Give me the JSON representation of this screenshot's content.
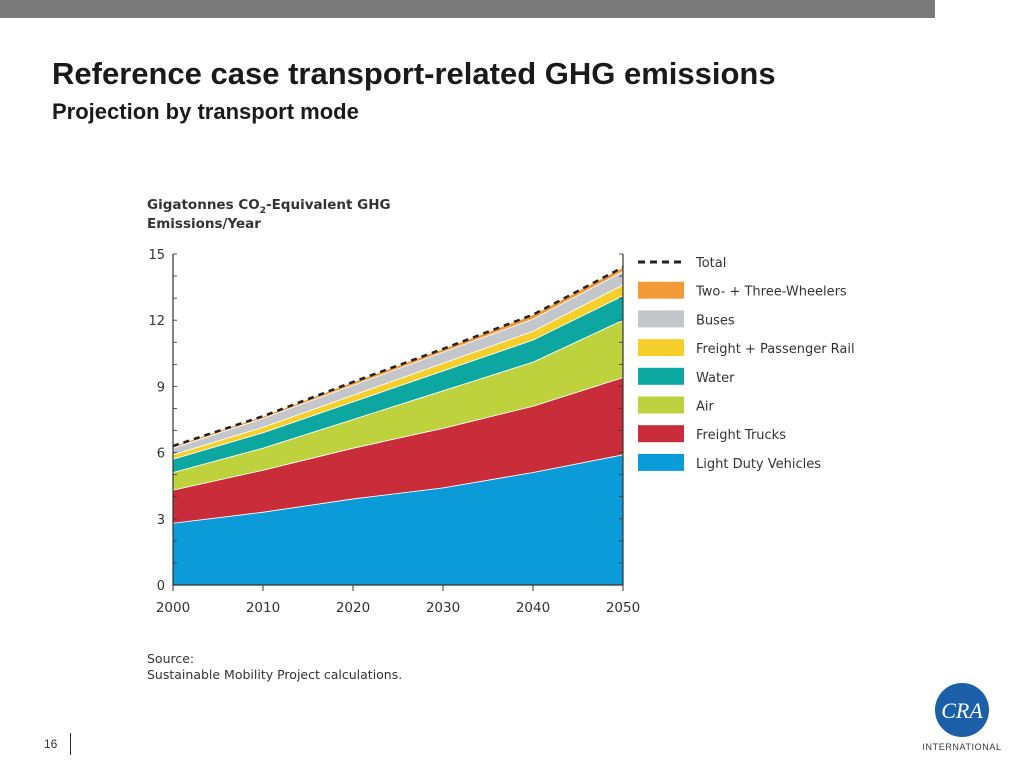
{
  "slide": {
    "title": "Reference case transport-related GHG emissions",
    "subtitle": "Projection by transport mode",
    "page_number": "16",
    "logo_text": "INTERNATIONAL",
    "logo_mark": "CRA",
    "colors": {
      "top_bar": "#7a7a7a",
      "logo": "#1a5fa8"
    }
  },
  "chart_data": {
    "type": "area",
    "stacked": true,
    "title_line1_pre": "Gigatonnes CO",
    "title_line1_sub": "2",
    "title_line1_post": "-Equivalent GHG",
    "title_line2": "Emissions/Year",
    "xlabel": "",
    "ylabel": "",
    "x": [
      2000,
      2010,
      2020,
      2030,
      2040,
      2050
    ],
    "x_ticks": [
      "2000",
      "2010",
      "2020",
      "2030",
      "2040",
      "2050"
    ],
    "xlim": [
      2000,
      2050
    ],
    "ylim": [
      0,
      15
    ],
    "y_ticks": [
      0,
      3,
      6,
      9,
      12,
      15
    ],
    "grid": false,
    "legend_position": "right",
    "series": [
      {
        "name": "Light Duty Vehicles",
        "color": "#0a9bd8",
        "values": [
          2.8,
          3.3,
          3.9,
          4.4,
          5.1,
          5.9
        ]
      },
      {
        "name": "Freight Trucks",
        "color": "#c82d39",
        "values": [
          1.5,
          1.9,
          2.3,
          2.7,
          3.0,
          3.5
        ]
      },
      {
        "name": "Air",
        "color": "#bdd23d",
        "values": [
          0.8,
          1.0,
          1.3,
          1.7,
          2.0,
          2.6
        ]
      },
      {
        "name": "Water",
        "color": "#0ba7a0",
        "values": [
          0.6,
          0.7,
          0.8,
          0.9,
          1.0,
          1.1
        ]
      },
      {
        "name": "Freight + Passenger Rail",
        "color": "#f7cf2a",
        "values": [
          0.2,
          0.25,
          0.3,
          0.35,
          0.4,
          0.5
        ]
      },
      {
        "name": "Buses",
        "color": "#c3c6cb",
        "values": [
          0.3,
          0.4,
          0.45,
          0.5,
          0.55,
          0.6
        ]
      },
      {
        "name": "Two- + Three-Wheelers",
        "color": "#f29a38",
        "values": [
          0.1,
          0.1,
          0.15,
          0.15,
          0.2,
          0.2
        ]
      }
    ],
    "total": {
      "name": "Total",
      "values": [
        6.3,
        7.65,
        9.2,
        10.7,
        12.25,
        14.4
      ]
    },
    "legend_order": [
      "Total",
      "Two- + Three-Wheelers",
      "Buses",
      "Freight + Passenger Rail",
      "Water",
      "Air",
      "Freight Trucks",
      "Light Duty Vehicles"
    ],
    "source_label": "Source:",
    "source_text": "Sustainable Mobility Project calculations."
  }
}
